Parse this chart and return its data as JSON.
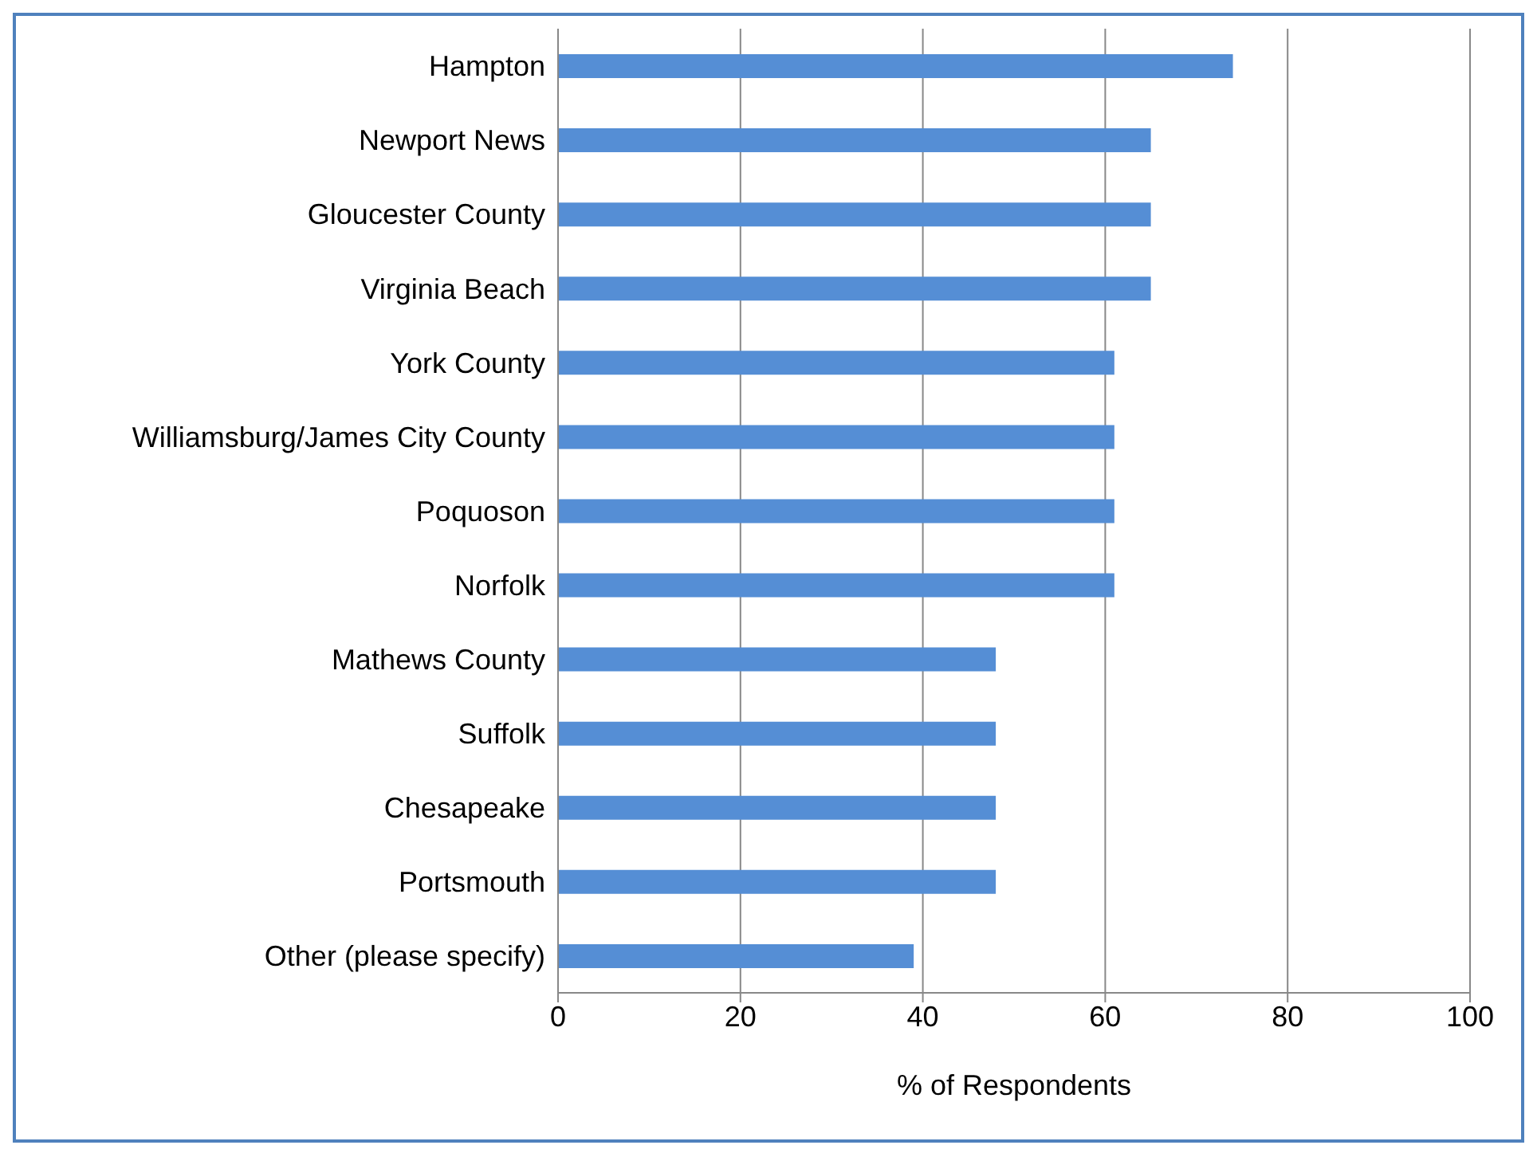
{
  "chart_data": {
    "type": "bar",
    "orientation": "horizontal",
    "xlabel": "% of Respondents",
    "categories": [
      "Hampton",
      "Newport News",
      "Gloucester County",
      "Virginia Beach",
      "York County",
      "Williamsburg/James City County",
      "Poquoson",
      "Norfolk",
      "Mathews County",
      "Suffolk",
      "Chesapeake",
      "Portsmouth",
      "Other (please specify)"
    ],
    "values": [
      74,
      65,
      65,
      65,
      61,
      61,
      61,
      61,
      48,
      48,
      48,
      48,
      39
    ],
    "color": "#558ed5",
    "xlim": [
      0,
      100
    ],
    "xticks": [
      0,
      20,
      40,
      60,
      80,
      100
    ],
    "grid": "x"
  }
}
